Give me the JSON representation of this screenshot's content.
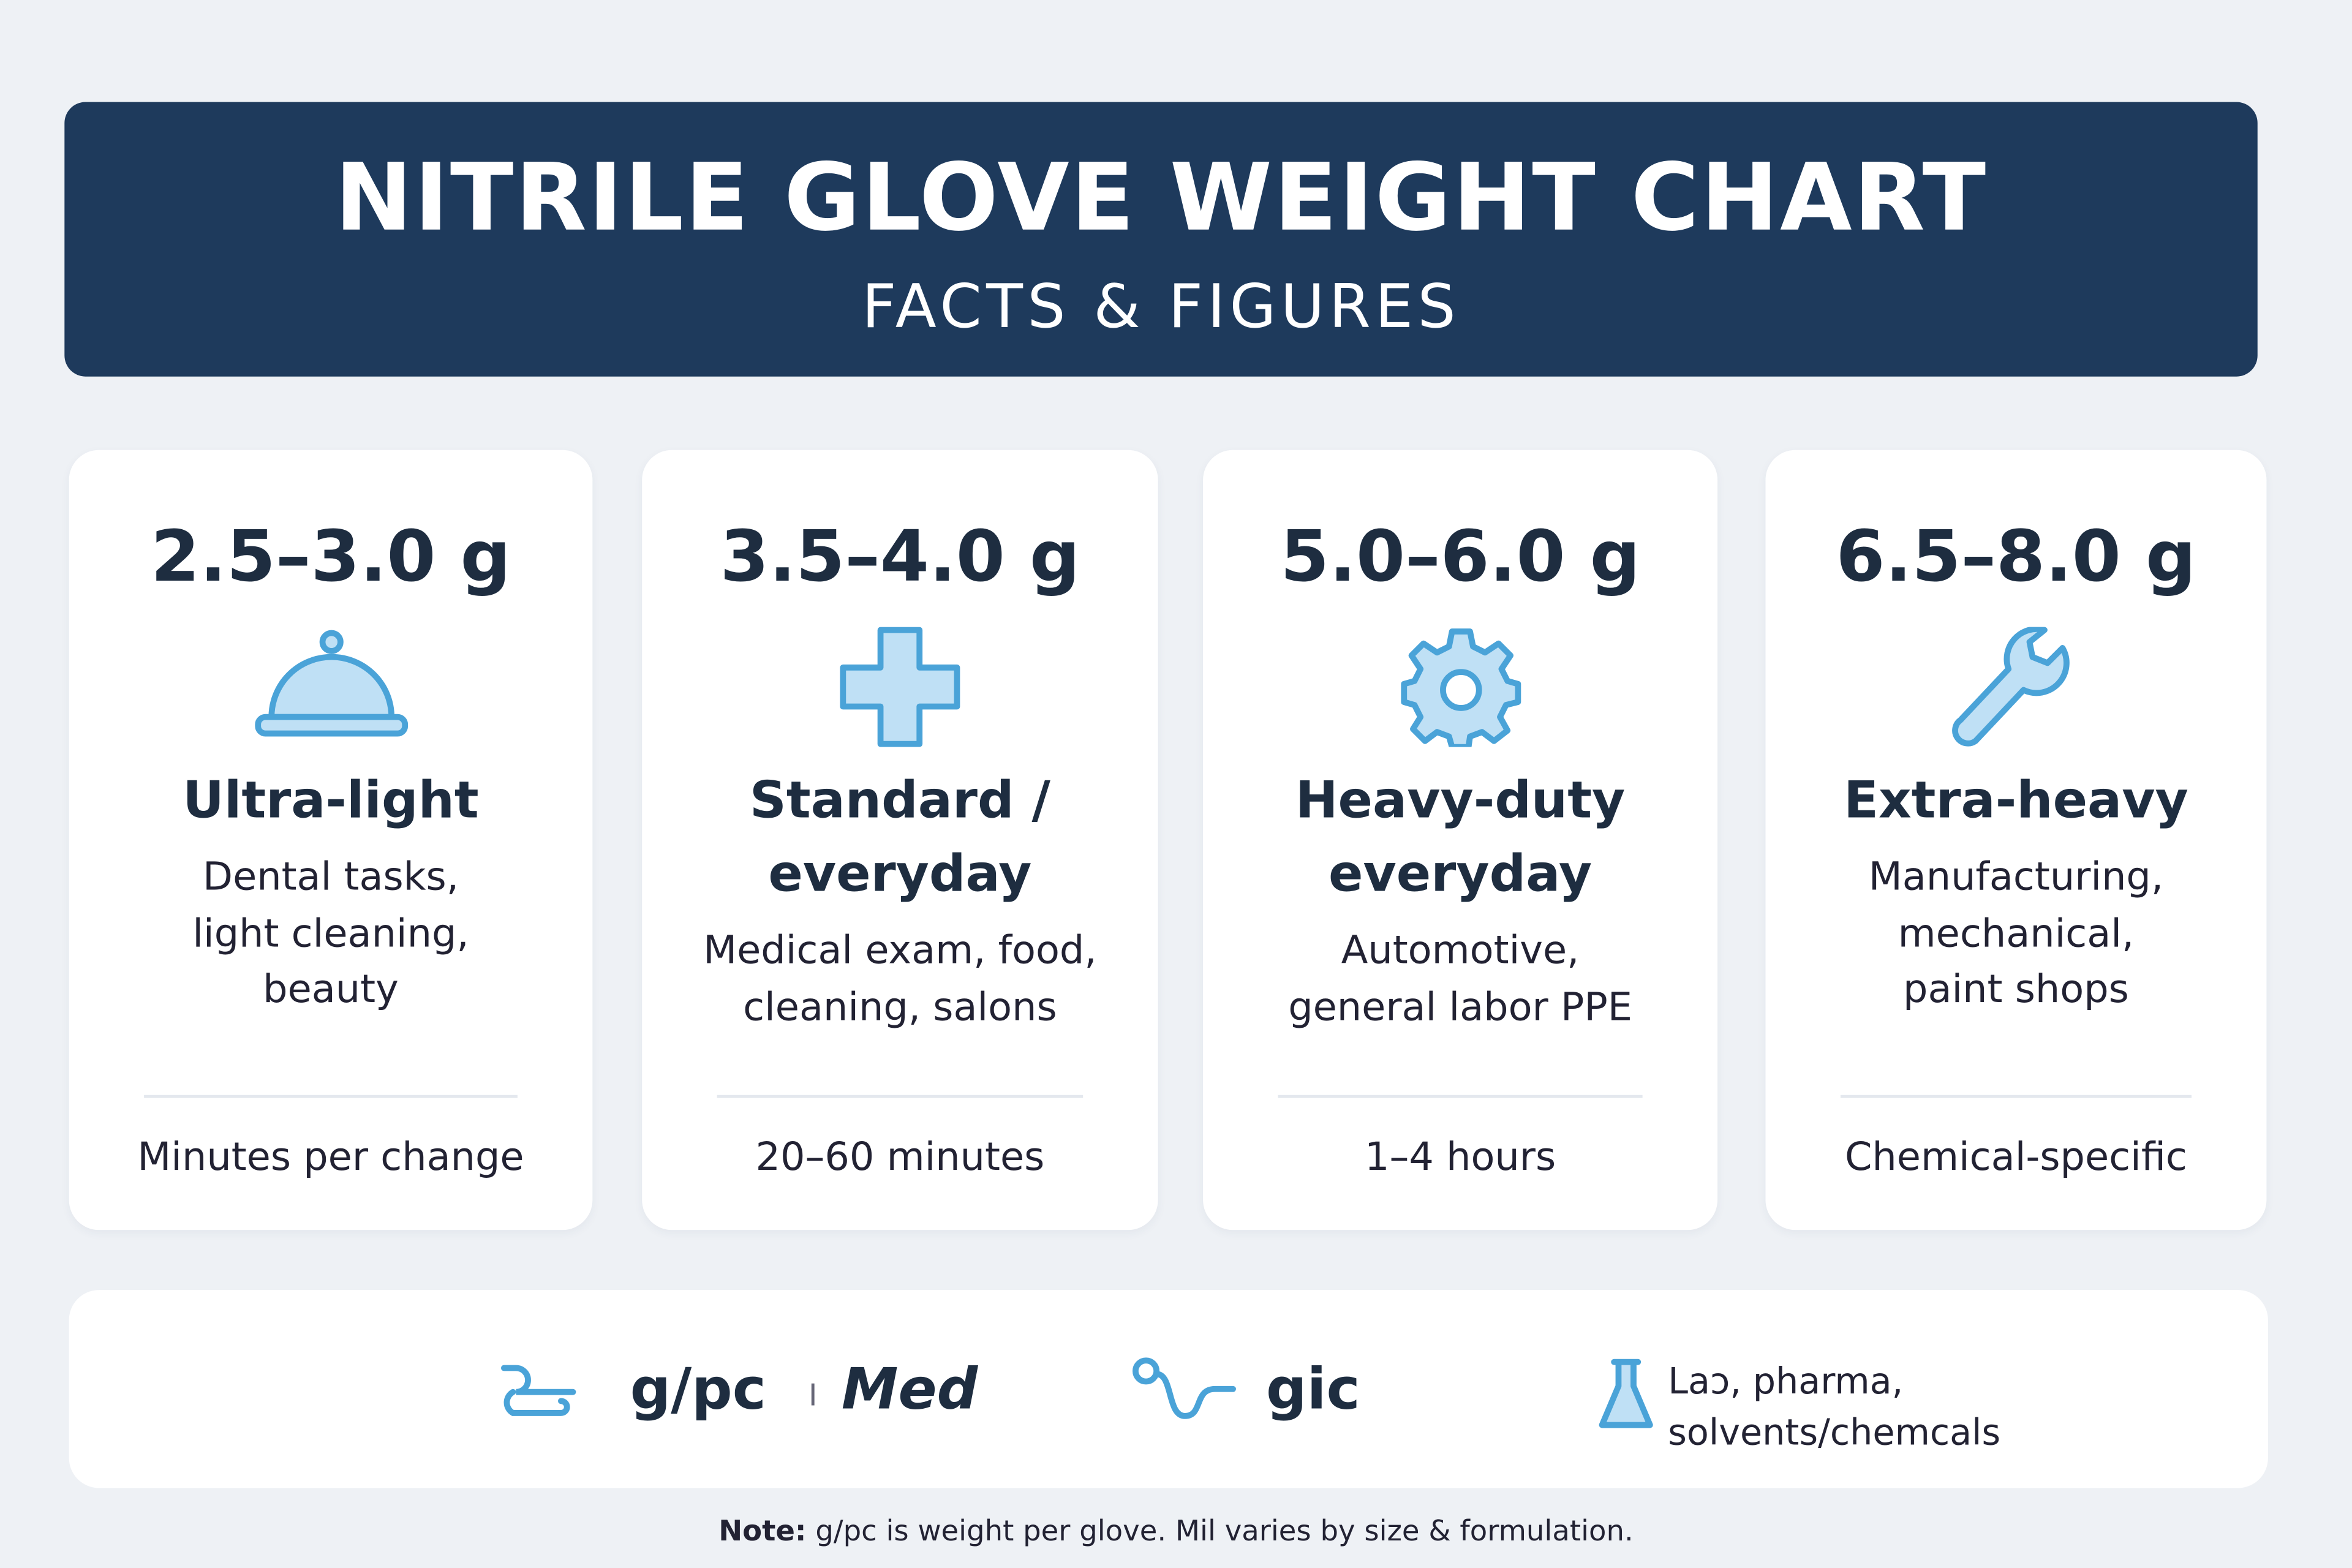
{
  "header": {
    "title": "NITRILE GLOVE WEIGHT CHART",
    "subtitle": "FACTS & FIGURES"
  },
  "cards": [
    {
      "weight": "2.5–3.0 g",
      "name": [
        "Ultra-light"
      ],
      "description": [
        "Dental tasks,",
        "light cleaning,",
        "beauty"
      ],
      "footer": "Minutes per change"
    },
    {
      "weight": "3.5–4.0 g",
      "name": [
        "Standard /",
        "everyday"
      ],
      "description": [
        "Medical exam, food,",
        "cleaning, salons"
      ],
      "footer": "20–60 minutes"
    },
    {
      "weight": "5.0–6.0 g",
      "name": [
        "Heavy-duty",
        "everyday"
      ],
      "description": [
        "Automotive,",
        "general labor PPE"
      ],
      "footer": "1–4 hours"
    },
    {
      "weight": "6.5–8.0 g",
      "name": [
        "Extra-heavy"
      ],
      "description": [
        "Manufacturing,",
        "mechanical,",
        "paint shops"
      ],
      "footer": "Chemical-specific"
    }
  ],
  "legend": {
    "unit": "g/pc",
    "separator": "I",
    "level": "Med",
    "alt_unit": "gic",
    "uses": [
      "Laɔ,  pharma,",
      "solvents/chemcals"
    ]
  },
  "note": {
    "label": "Note:",
    "text": "g/pc is weight per glove. Mil varies by size & formulation."
  }
}
